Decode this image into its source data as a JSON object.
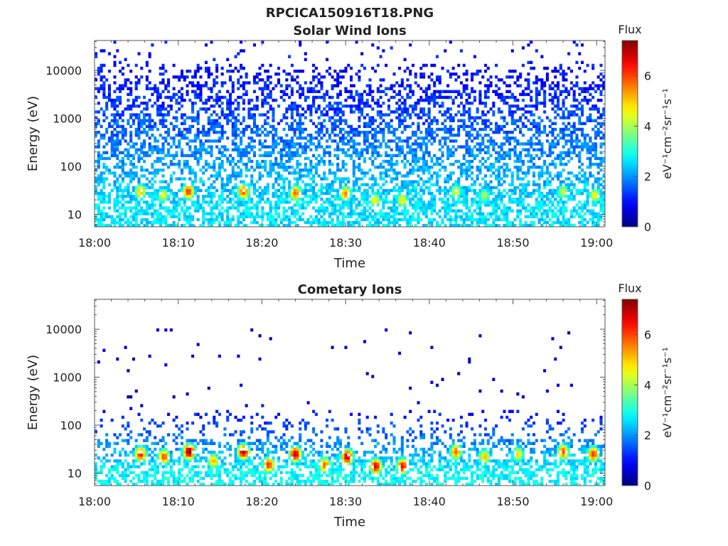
{
  "figure": {
    "title": "RPCICA150916T18.PNG"
  },
  "chart_data": [
    {
      "type": "heatmap",
      "title": "Solar Wind Ions",
      "xlabel": "Time",
      "ylabel": "Energy (eV)",
      "x_ticks": [
        "18:00",
        "18:10",
        "18:20",
        "18:30",
        "18:40",
        "18:50",
        "19:00"
      ],
      "x_range_minutes": [
        0,
        61
      ],
      "y_scale": "log",
      "y_ticks": [
        10,
        100,
        1000,
        10000
      ],
      "y_tick_labels": [
        "10",
        "100",
        "1000",
        "10000"
      ],
      "ylim": [
        5.5,
        42000
      ],
      "colorbar": {
        "title": "Flux",
        "label": "eV⁻¹cm⁻²sr⁻¹s⁻¹",
        "ticks": [
          0,
          2,
          4,
          6
        ],
        "range": [
          0,
          7.4
        ],
        "colormap": "jet"
      },
      "background_flux": {
        "low_energy": 2.6,
        "high_energy": 1.0
      },
      "hot_spots": [
        {
          "time_min": 5.5,
          "energy_ev": 30,
          "flux": 5.2
        },
        {
          "time_min": 8.2,
          "energy_ev": 25,
          "flux": 4.6
        },
        {
          "time_min": 11.2,
          "energy_ev": 30,
          "flux": 6.2
        },
        {
          "time_min": 17.8,
          "energy_ev": 30,
          "flux": 6.0
        },
        {
          "time_min": 24.0,
          "energy_ev": 28,
          "flux": 5.8
        },
        {
          "time_min": 30.0,
          "energy_ev": 27,
          "flux": 5.6
        },
        {
          "time_min": 33.5,
          "energy_ev": 20,
          "flux": 4.8
        },
        {
          "time_min": 36.8,
          "energy_ev": 20,
          "flux": 4.8
        },
        {
          "time_min": 43.2,
          "energy_ev": 30,
          "flux": 4.6
        },
        {
          "time_min": 46.6,
          "energy_ev": 25,
          "flux": 4.2
        },
        {
          "time_min": 56.0,
          "energy_ev": 30,
          "flux": 4.4
        },
        {
          "time_min": 59.8,
          "energy_ev": 25,
          "flux": 4.8
        }
      ]
    },
    {
      "type": "heatmap",
      "title": "Cometary Ions",
      "xlabel": "Time",
      "ylabel": "Energy (eV)",
      "x_ticks": [
        "18:00",
        "18:10",
        "18:20",
        "18:30",
        "18:40",
        "18:50",
        "19:00"
      ],
      "x_range_minutes": [
        0,
        61
      ],
      "y_scale": "log",
      "y_ticks": [
        10,
        100,
        1000,
        10000
      ],
      "y_tick_labels": [
        "10",
        "100",
        "1000",
        "10000"
      ],
      "ylim": [
        5.5,
        42000
      ],
      "colorbar": {
        "title": "Flux",
        "label": "eV⁻¹cm⁻²sr⁻¹s⁻¹",
        "ticks": [
          0,
          2,
          4,
          6
        ],
        "range": [
          0,
          7.4
        ],
        "colormap": "jet"
      },
      "background_flux": {
        "low_energy": 2.8,
        "high_energy": 0.6
      },
      "hot_spots": [
        {
          "time_min": 5.5,
          "energy_ev": 25,
          "flux": 6.4
        },
        {
          "time_min": 8.3,
          "energy_ev": 22,
          "flux": 6.0
        },
        {
          "time_min": 11.3,
          "energy_ev": 28,
          "flux": 7.3
        },
        {
          "time_min": 14.2,
          "energy_ev": 18,
          "flux": 5.2
        },
        {
          "time_min": 17.8,
          "energy_ev": 28,
          "flux": 7.0
        },
        {
          "time_min": 20.8,
          "energy_ev": 15,
          "flux": 6.2
        },
        {
          "time_min": 24.0,
          "energy_ev": 25,
          "flux": 7.0
        },
        {
          "time_min": 27.5,
          "energy_ev": 15,
          "flux": 5.8
        },
        {
          "time_min": 30.2,
          "energy_ev": 22,
          "flux": 7.0
        },
        {
          "time_min": 33.6,
          "energy_ev": 14,
          "flux": 6.8
        },
        {
          "time_min": 36.8,
          "energy_ev": 14,
          "flux": 6.6
        },
        {
          "time_min": 43.2,
          "energy_ev": 28,
          "flux": 5.8
        },
        {
          "time_min": 46.6,
          "energy_ev": 22,
          "flux": 5.2
        },
        {
          "time_min": 50.6,
          "energy_ev": 25,
          "flux": 5.0
        },
        {
          "time_min": 56.0,
          "energy_ev": 28,
          "flux": 6.0
        },
        {
          "time_min": 59.6,
          "energy_ev": 25,
          "flux": 6.2
        }
      ]
    }
  ]
}
